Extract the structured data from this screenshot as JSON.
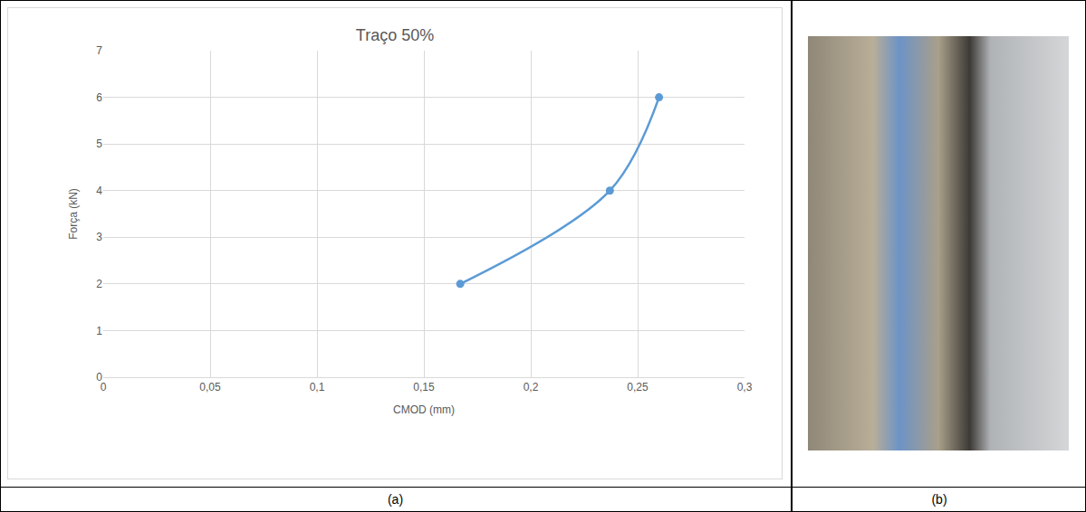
{
  "panels": [
    "(a)",
    "(b)"
  ],
  "chart_data": {
    "type": "line",
    "title": "Traço 50%",
    "x_label": "CMOD (mm)",
    "y_label": "Força (kN)",
    "x": [
      0.167,
      0.237,
      0.26
    ],
    "values": [
      2,
      4,
      6
    ],
    "color": "#5b9bd5",
    "marker": "circle",
    "line_style": "smooth",
    "xlim": [
      0,
      0.3
    ],
    "xticks": [
      0,
      {
        "value": 0.05,
        "label": "0,05"
      },
      {
        "value": 0.1,
        "label": "0,1"
      },
      {
        "value": 0.15,
        "label": "0,15"
      },
      {
        "value": 0.2,
        "label": "0,2"
      },
      {
        "value": 0.25,
        "label": "0,25"
      },
      {
        "value": 0.3,
        "label": "0,3"
      }
    ],
    "ylim": [
      0,
      7
    ],
    "yticks": [
      0,
      1,
      2,
      3,
      4,
      5,
      6,
      7
    ],
    "grid": true
  }
}
